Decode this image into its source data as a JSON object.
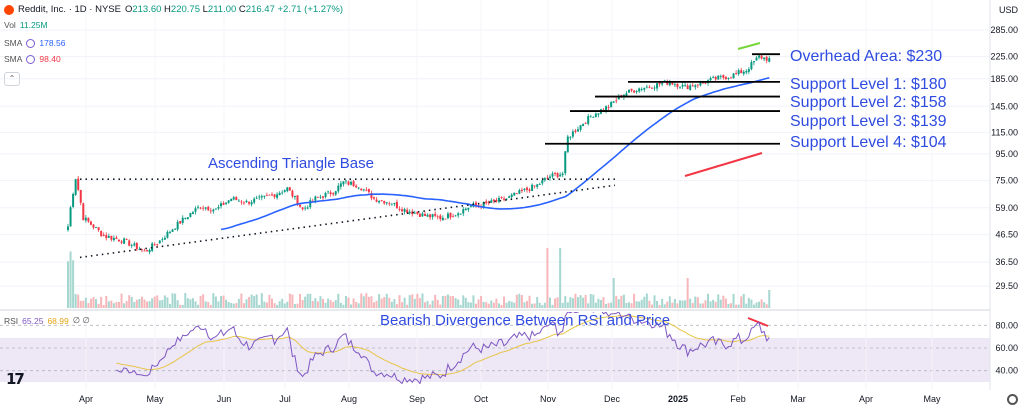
{
  "header": {
    "symbol": "Reddit, Inc. · 1D · NYSE",
    "ohlc": {
      "open": "213.60",
      "high": "220.75",
      "low": "211.00",
      "close": "216.47",
      "change": "+2.71 (+1.27%)"
    },
    "labels": {
      "open": "O",
      "high": "H",
      "low": "L",
      "close": "C"
    }
  },
  "indicators": {
    "vol": {
      "label": "Vol",
      "value": "11.25M"
    },
    "sma1": {
      "label": "SMA",
      "value": "178.56",
      "color": "#2962ff"
    },
    "sma2": {
      "label": "SMA",
      "value": "98.40",
      "color": "#f23645"
    }
  },
  "rsi_header": {
    "label": "RSI",
    "v1": "65.25",
    "v2": "68.99",
    "v3": "∅ ∅"
  },
  "currency": "USD",
  "chart_data": {
    "type": "candlestick",
    "x_ticks": [
      "Apr",
      "May",
      "Jun",
      "Jul",
      "Aug",
      "Sep",
      "Oct",
      "Nov",
      "Dec",
      "2025",
      "Feb",
      "Mar",
      "Apr",
      "May"
    ],
    "y_ticks": [
      29.5,
      36.5,
      46.5,
      59.0,
      75.0,
      95.0,
      115.0,
      145.0,
      185.0,
      225.0,
      285.0
    ],
    "y_scale": "log",
    "rsi_ticks": [
      80.0,
      60.0,
      40.0
    ],
    "annotations": {
      "triangle": "Ascending Triangle Base",
      "divergence": "Bearish Divergence Between RSI and Price",
      "levels": [
        {
          "label": "Overhead Area: $230",
          "price": 230
        },
        {
          "label": "Support Level 1: $180",
          "price": 180
        },
        {
          "label": "Support Level 2: $158",
          "price": 158
        },
        {
          "label": "Support Level 3: $139",
          "price": 139
        },
        {
          "label": "Support Level 4: $104",
          "price": 104
        }
      ]
    },
    "price_keypoints": [
      [
        0,
        50
      ],
      [
        3,
        77
      ],
      [
        6,
        54
      ],
      [
        14,
        46
      ],
      [
        22,
        44
      ],
      [
        30,
        40
      ],
      [
        36,
        44
      ],
      [
        44,
        52
      ],
      [
        52,
        60
      ],
      [
        58,
        58
      ],
      [
        64,
        64
      ],
      [
        70,
        62
      ],
      [
        76,
        64
      ],
      [
        82,
        67
      ],
      [
        86,
        70
      ],
      [
        92,
        58
      ],
      [
        97,
        64
      ],
      [
        104,
        68
      ],
      [
        108,
        74
      ],
      [
        114,
        72
      ],
      [
        120,
        64
      ],
      [
        126,
        62
      ],
      [
        132,
        58
      ],
      [
        140,
        55
      ],
      [
        146,
        54
      ],
      [
        152,
        56
      ],
      [
        158,
        60
      ],
      [
        164,
        61
      ],
      [
        172,
        64
      ],
      [
        178,
        68
      ],
      [
        184,
        72
      ],
      [
        189,
        78
      ],
      [
        194,
        80
      ],
      [
        196,
        110
      ],
      [
        200,
        120
      ],
      [
        206,
        135
      ],
      [
        212,
        145
      ],
      [
        218,
        162
      ],
      [
        224,
        170
      ],
      [
        230,
        175
      ],
      [
        236,
        180
      ],
      [
        242,
        172
      ],
      [
        248,
        178
      ],
      [
        254,
        185
      ],
      [
        260,
        190
      ],
      [
        266,
        200
      ],
      [
        271,
        225
      ],
      [
        275,
        220
      ]
    ]
  }
}
